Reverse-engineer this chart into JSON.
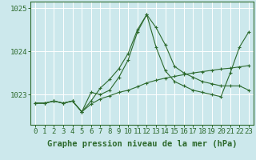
{
  "hours": [
    0,
    1,
    2,
    3,
    4,
    5,
    6,
    7,
    8,
    9,
    10,
    11,
    12,
    13,
    14,
    15,
    16,
    17,
    18,
    19,
    20,
    21,
    22,
    23
  ],
  "line1": [
    1022.8,
    1022.8,
    1022.85,
    1022.8,
    1022.85,
    1022.6,
    1022.85,
    1023.15,
    1023.35,
    1023.6,
    1023.95,
    1024.5,
    1024.85,
    1024.55,
    1024.15,
    1023.65,
    1023.5,
    1023.4,
    1023.3,
    1023.25,
    1023.2,
    1023.2,
    1023.2,
    1023.1
  ],
  "line2": [
    1022.8,
    1022.8,
    1022.85,
    1022.8,
    1022.85,
    1022.6,
    1023.05,
    1023.0,
    1023.1,
    1023.4,
    1023.8,
    1024.45,
    1024.85,
    1024.1,
    1023.55,
    1023.3,
    1023.2,
    1023.1,
    1023.05,
    1023.0,
    1022.95,
    1023.5,
    1024.1,
    1024.45
  ],
  "line3": [
    1022.8,
    1022.8,
    1022.85,
    1022.8,
    1022.85,
    1022.6,
    1022.78,
    1022.9,
    1022.97,
    1023.05,
    1023.1,
    1023.18,
    1023.27,
    1023.33,
    1023.38,
    1023.42,
    1023.46,
    1023.5,
    1023.53,
    1023.56,
    1023.59,
    1023.61,
    1023.64,
    1023.67
  ],
  "bg_color": "#cce8ec",
  "line_color": "#2d6a2d",
  "grid_color": "#ffffff",
  "ylabel_values": [
    1023,
    1024,
    1025
  ],
  "ylim": [
    1022.3,
    1025.15
  ],
  "xlim": [
    -0.5,
    23.5
  ],
  "xlabel": "Graphe pression niveau de la mer (hPa)",
  "xlabel_fontsize": 7.5,
  "tick_fontsize": 6.5
}
